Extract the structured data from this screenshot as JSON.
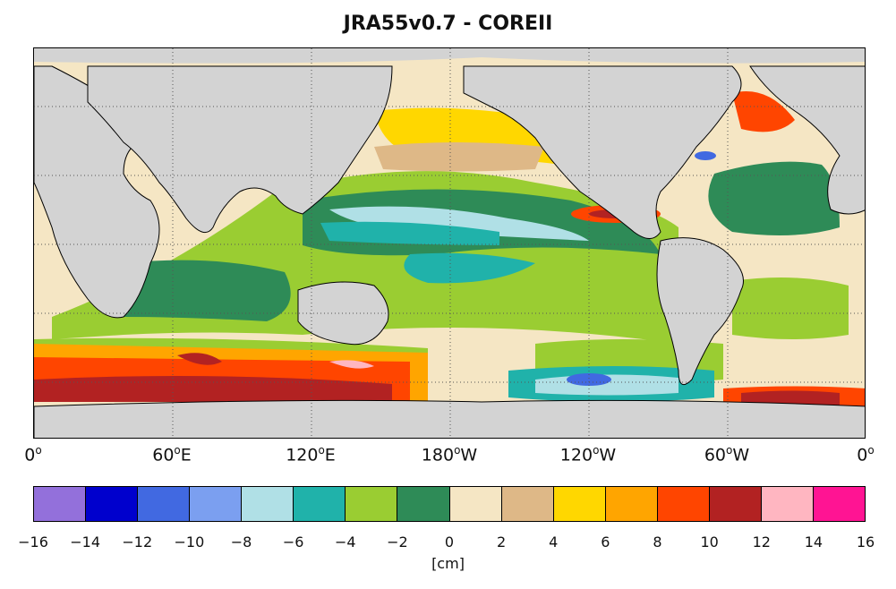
{
  "title": "JRA55v0.7 - COREII",
  "map": {
    "land_color": "#d3d3d3",
    "lon_ticks": [
      {
        "num": "0",
        "suffix": ""
      },
      {
        "num": "60",
        "suffix": "E"
      },
      {
        "num": "120",
        "suffix": "E"
      },
      {
        "num": "180",
        "suffix": "W"
      },
      {
        "num": "120",
        "suffix": "W"
      },
      {
        "num": "60",
        "suffix": "W"
      },
      {
        "num": "0",
        "suffix": ""
      }
    ]
  },
  "colorbar": {
    "colors": [
      "#9370db",
      "#0000cd",
      "#4169e1",
      "#7b9ff0",
      "#b0e0e6",
      "#20b2aa",
      "#9acd32",
      "#2e8b57",
      "#f5e6c4",
      "#deb887",
      "#ffd700",
      "#ffa500",
      "#ff4500",
      "#b22222",
      "#ffb6c1",
      "#ff1493"
    ],
    "ticks": [
      "−16",
      "−14",
      "−12",
      "−10",
      "−8",
      "−6",
      "−4",
      "−2",
      "0",
      "2",
      "4",
      "6",
      "8",
      "10",
      "12",
      "14",
      "16"
    ],
    "units": "[cm]"
  }
}
